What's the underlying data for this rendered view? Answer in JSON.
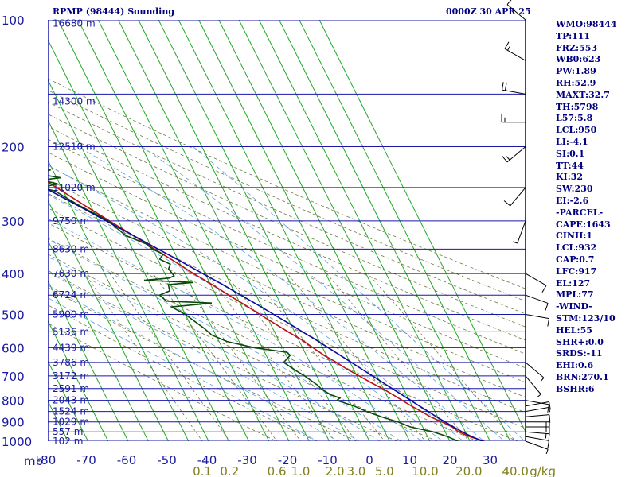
{
  "header": {
    "station": "RPMP (98444) Sounding",
    "valid_time": "0000Z 30 APR 25"
  },
  "indices": [
    "WMO:98444",
    "TP:111",
    "FRZ:553",
    "WB0:623",
    "PW:1.89",
    "RH:52.9",
    "MAXT:32.7",
    "TH:5798",
    "L57:5.8",
    "LCL:950",
    "LI:-4.1",
    "SI:0.1",
    "TT:44",
    "KI:32",
    "SW:230",
    "EI:-2.6",
    "-PARCEL-",
    "CAPE:1643",
    "CINH:1",
    "LCL:932",
    "CAP:0.7",
    "LFC:917",
    "EL:127",
    "MPL:77",
    "-WIND-",
    "STM:123/10",
    "HEL:55",
    "SHR+:0.0",
    "SRDS:-11",
    "EHI:0.6",
    "BRN:270.1",
    "BSHR:6"
  ],
  "chart_data": {
    "type": "line",
    "axes": {
      "pressure_unit_label": "mb",
      "pressure_ticks": [
        "100",
        "200",
        "300",
        "400",
        "500",
        "600",
        "700",
        "800",
        "900",
        "1000"
      ],
      "pressure_range": [
        100,
        1000
      ],
      "temperature_range": [
        -80,
        30
      ],
      "temperature_ticks": [
        "-80",
        "-70",
        "-60",
        "-50",
        "-40",
        "-30",
        "-20",
        "-10",
        "0",
        "10",
        "20",
        "30"
      ],
      "mixing_ratio_ticks": [
        "0.1",
        "0.2",
        "0.6",
        "1.0",
        "2.0",
        "3.0",
        "5.0",
        "10.0",
        "20.0",
        "40.0"
      ],
      "mixing_ratio_unit": "g/kg",
      "height_labels": [
        {
          "p": 102,
          "label": "16680 m"
        },
        {
          "p": 156,
          "label": "14300 m"
        },
        {
          "p": 200,
          "label": "12510 m"
        },
        {
          "p": 250,
          "label": "11020 m"
        },
        {
          "p": 300,
          "label": "9750 m"
        },
        {
          "p": 350,
          "label": "8630 m"
        },
        {
          "p": 400,
          "label": "7630 m"
        },
        {
          "p": 450,
          "label": "6724 m"
        },
        {
          "p": 500,
          "label": "5900 m"
        },
        {
          "p": 550,
          "label": "5136 m"
        },
        {
          "p": 600,
          "label": "4439 m"
        },
        {
          "p": 650,
          "label": "3786 m"
        },
        {
          "p": 700,
          "label": "3172 m"
        },
        {
          "p": 750,
          "label": "2591 m"
        },
        {
          "p": 800,
          "label": "2043 m"
        },
        {
          "p": 850,
          "label": "1524 m"
        },
        {
          "p": 900,
          "label": "1029 m"
        },
        {
          "p": 950,
          "label": "557 m"
        },
        {
          "p": 1000,
          "label": "102 m"
        }
      ]
    },
    "grid": true,
    "colors": {
      "isobar": "#1818a8",
      "isotherm": "#22a822",
      "dry_adiabat": "#6f7a45",
      "moist_adiabat": "#5a9fe0",
      "mixing_ratio": "#6f7a45",
      "temperature": "#bb1111",
      "dewpoint": "#0b4a0b",
      "parcel": "#0a0aa0",
      "wind": "#000000"
    },
    "series": [
      {
        "role": "temperature",
        "points": [
          [
            1007,
            29.5
          ],
          [
            1000,
            28.5
          ],
          [
            975,
            25.5
          ],
          [
            950,
            23.3
          ],
          [
            925,
            22.4
          ],
          [
            900,
            20.4
          ],
          [
            875,
            18.2
          ],
          [
            850,
            16.6
          ],
          [
            825,
            14.8
          ],
          [
            800,
            13.2
          ],
          [
            775,
            11.6
          ],
          [
            750,
            9.8
          ],
          [
            725,
            7.6
          ],
          [
            700,
            5.6
          ],
          [
            675,
            3.4
          ],
          [
            650,
            1.6
          ],
          [
            625,
            -0.6
          ],
          [
            600,
            -2.4
          ],
          [
            575,
            -4.2
          ],
          [
            550,
            -6.6
          ],
          [
            525,
            -9.0
          ],
          [
            500,
            -11.5
          ],
          [
            475,
            -14.0
          ],
          [
            450,
            -16.8
          ],
          [
            425,
            -19.6
          ],
          [
            400,
            -22.9
          ],
          [
            375,
            -26.0
          ],
          [
            350,
            -29.5
          ],
          [
            325,
            -33.1
          ],
          [
            300,
            -37.2
          ],
          [
            275,
            -41.6
          ],
          [
            250,
            -46.2
          ],
          [
            225,
            -51.3
          ],
          [
            200,
            -56.5
          ],
          [
            175,
            -62.5
          ],
          [
            150,
            -69.5
          ],
          [
            125,
            -76.0
          ],
          [
            111,
            -80.0
          ]
        ]
      },
      {
        "role": "dewpoint",
        "points": [
          [
            1007,
            23.5
          ],
          [
            1000,
            22.0
          ],
          [
            975,
            20.0
          ],
          [
            950,
            17.0
          ],
          [
            925,
            12.0
          ],
          [
            900,
            9.5
          ],
          [
            875,
            6.0
          ],
          [
            850,
            3.0
          ],
          [
            825,
            0.5
          ],
          [
            800,
            -3.0
          ],
          [
            790,
            -2.0
          ],
          [
            775,
            -4.0
          ],
          [
            750,
            -5.5
          ],
          [
            735,
            -6.0
          ],
          [
            700,
            -8.0
          ],
          [
            680,
            -9.5
          ],
          [
            650,
            -11.5
          ],
          [
            625,
            -9.0
          ],
          [
            615,
            -9.5
          ],
          [
            600,
            -17.0
          ],
          [
            580,
            -23.0
          ],
          [
            560,
            -26.0
          ],
          [
            540,
            -27.0
          ],
          [
            500,
            -30.0
          ],
          [
            480,
            -32.5
          ],
          [
            470,
            -22.0
          ],
          [
            465,
            -33.0
          ],
          [
            450,
            -34.0
          ],
          [
            440,
            -31.0
          ],
          [
            425,
            -30.5
          ],
          [
            420,
            -24.0
          ],
          [
            415,
            -36.0
          ],
          [
            410,
            -29.5
          ],
          [
            405,
            -28.0
          ],
          [
            390,
            -28.5
          ],
          [
            380,
            -27.5
          ],
          [
            370,
            -29.5
          ],
          [
            360,
            -28.0
          ],
          [
            350,
            -30.0
          ],
          [
            340,
            -31.0
          ],
          [
            325,
            -35.0
          ],
          [
            300,
            -37.5
          ],
          [
            275,
            -43.0
          ],
          [
            255,
            -47.0
          ],
          [
            250,
            -50.0
          ],
          [
            245,
            -45.5
          ],
          [
            240,
            -49.0
          ],
          [
            237,
            -44.0
          ],
          [
            232,
            -49.5
          ],
          [
            227,
            -45.5
          ],
          [
            222,
            -50.5
          ],
          [
            215,
            -52.5
          ],
          [
            200,
            -57.0
          ],
          [
            180,
            -64.0
          ],
          [
            160,
            -71.0
          ],
          [
            140,
            -77.0
          ],
          [
            128,
            -80.0
          ]
        ]
      },
      {
        "role": "parcel",
        "points": [
          [
            1007,
            29.5
          ],
          [
            1000,
            28.2
          ],
          [
            975,
            26.0
          ],
          [
            950,
            24.2
          ],
          [
            925,
            22.7
          ],
          [
            900,
            21.2
          ],
          [
            875,
            19.7
          ],
          [
            850,
            18.3
          ],
          [
            825,
            16.8
          ],
          [
            800,
            15.3
          ],
          [
            775,
            13.8
          ],
          [
            750,
            12.2
          ],
          [
            725,
            10.6
          ],
          [
            700,
            8.9
          ],
          [
            675,
            7.1
          ],
          [
            650,
            5.3
          ],
          [
            625,
            3.4
          ],
          [
            600,
            1.4
          ],
          [
            575,
            -0.7
          ],
          [
            550,
            -3.0
          ],
          [
            525,
            -5.4
          ],
          [
            500,
            -8.0
          ],
          [
            475,
            -10.8
          ],
          [
            450,
            -13.8
          ],
          [
            425,
            -17.0
          ],
          [
            400,
            -20.6
          ],
          [
            375,
            -24.4
          ],
          [
            350,
            -28.6
          ],
          [
            325,
            -33.1
          ],
          [
            300,
            -38.0
          ],
          [
            275,
            -43.4
          ],
          [
            250,
            -49.3
          ],
          [
            225,
            -55.9
          ],
          [
            200,
            -63.2
          ],
          [
            175,
            -71.2
          ],
          [
            155,
            -78.0
          ],
          [
            150,
            -80.0
          ]
        ]
      }
    ],
    "wind_barbs": [
      {
        "p": 1000,
        "dir": 110,
        "spd": 5
      },
      {
        "p": 975,
        "dir": 100,
        "spd": 10
      },
      {
        "p": 950,
        "dir": 95,
        "spd": 15
      },
      {
        "p": 925,
        "dir": 90,
        "spd": 15
      },
      {
        "p": 900,
        "dir": 90,
        "spd": 15
      },
      {
        "p": 875,
        "dir": 85,
        "spd": 10
      },
      {
        "p": 850,
        "dir": 80,
        "spd": 5
      },
      {
        "p": 825,
        "dir": 80,
        "spd": 10
      },
      {
        "p": 800,
        "dir": 100,
        "spd": 10
      },
      {
        "p": 700,
        "dir": 140,
        "spd": 5
      },
      {
        "p": 650,
        "dir": 130,
        "spd": 5
      },
      {
        "p": 500,
        "dir": 100,
        "spd": 10
      },
      {
        "p": 450,
        "dir": 110,
        "spd": 10
      },
      {
        "p": 400,
        "dir": 120,
        "spd": 10
      },
      {
        "p": 300,
        "dir": 200,
        "spd": 5
      },
      {
        "p": 250,
        "dir": 220,
        "spd": 10
      },
      {
        "p": 200,
        "dir": 230,
        "spd": 15
      },
      {
        "p": 175,
        "dir": 270,
        "spd": 15
      },
      {
        "p": 150,
        "dir": 280,
        "spd": 20
      },
      {
        "p": 125,
        "dir": 300,
        "spd": 15
      },
      {
        "p": 100,
        "dir": 310,
        "spd": 10
      }
    ]
  }
}
